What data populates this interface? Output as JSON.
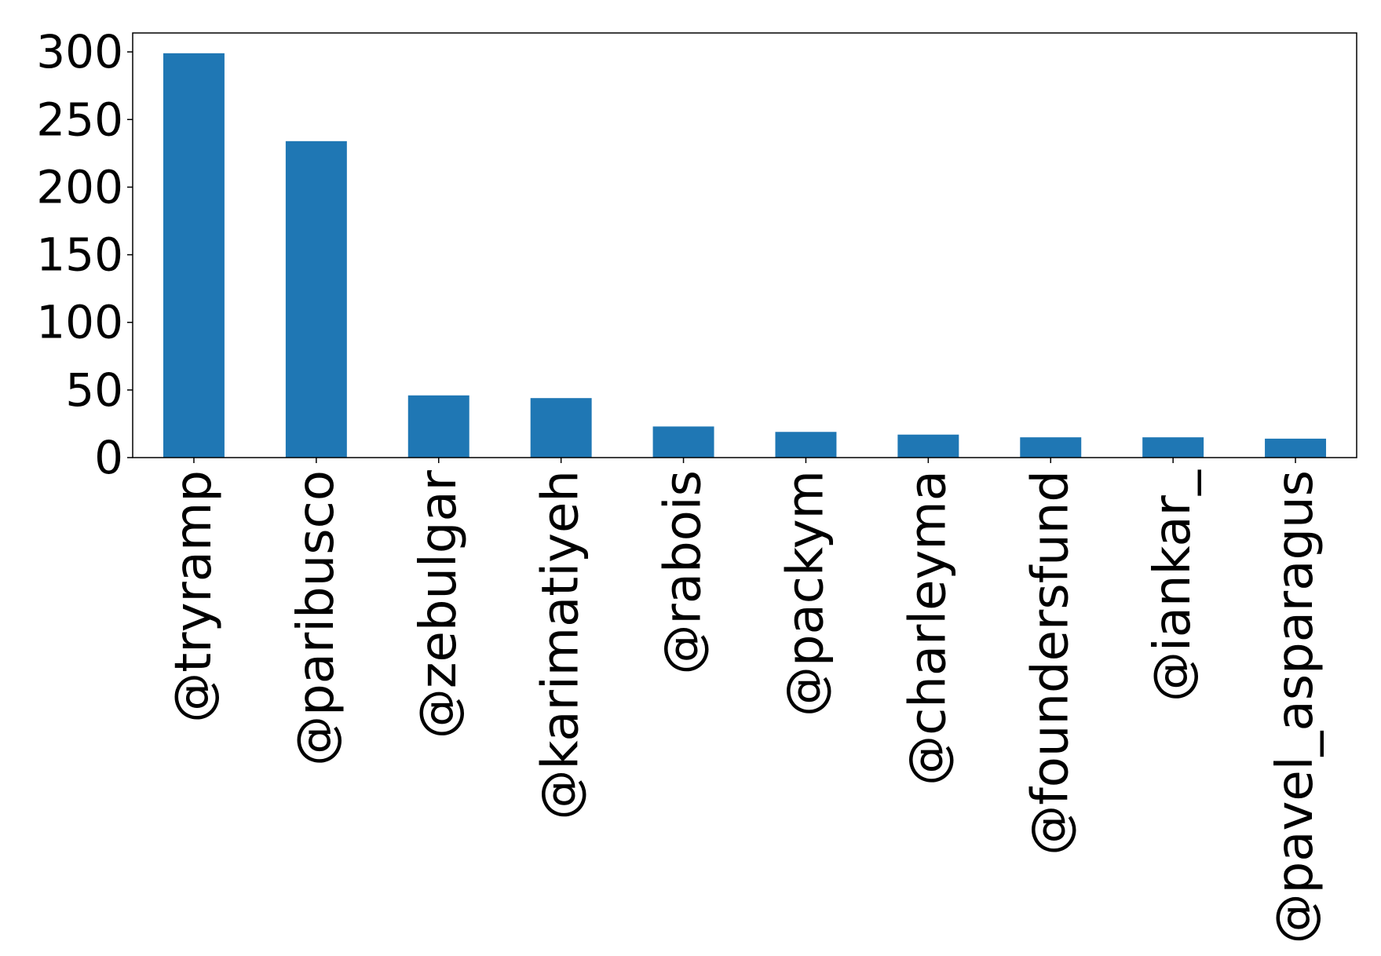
{
  "chart_data": {
    "type": "bar",
    "title": "",
    "xlabel": "",
    "ylabel": "",
    "categories": [
      "@tryramp",
      "@paribusco",
      "@zebulgar",
      "@karimatiyeh",
      "@rabois",
      "@packym",
      "@charleyma",
      "@foundersfund",
      "@iankar_",
      "@pavel_asparagus"
    ],
    "values": [
      299,
      234,
      46,
      44,
      23,
      19,
      17,
      15,
      15,
      14
    ],
    "ylim": [
      0,
      314
    ],
    "yticks": [
      "0",
      "50",
      "100",
      "150",
      "200",
      "250",
      "300"
    ],
    "grid": false,
    "bar_color": "#1f77b4"
  }
}
